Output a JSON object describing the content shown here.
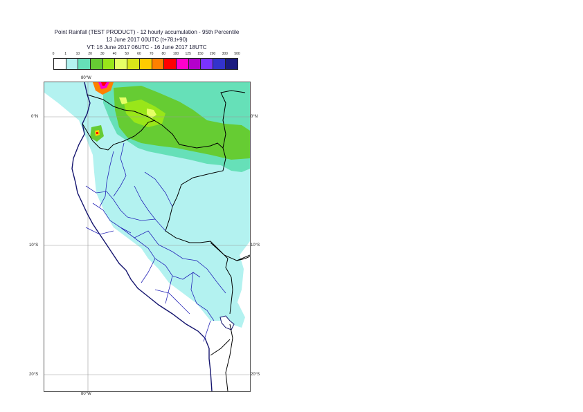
{
  "title": {
    "line1": "Point Rainfall (TEST PRODUCT) - 12 hourly accumulation - 95th Percentile",
    "line2": "13 June 2017 00UTC (t+78,t+90)",
    "line3": "VT: 16 June 2017 06UTC - 16 June 2017 18UTC"
  },
  "legend": {
    "thresholds": [
      "0",
      "1",
      "10",
      "20",
      "30",
      "40",
      "50",
      "60",
      "70",
      "80",
      "100",
      "125",
      "150",
      "200",
      "300",
      "500"
    ],
    "colors": [
      "#ffffff",
      "#b3f2f0",
      "#66e0b8",
      "#66cc33",
      "#99e619",
      "#e6ff66",
      "#d9e619",
      "#ffcc00",
      "#ff8000",
      "#ff0000",
      "#ff00cc",
      "#b300cc",
      "#7a33ff",
      "#3333cc",
      "#1a1a80"
    ]
  },
  "axes": {
    "lon_top": "80°W",
    "lon_bottom": "80°W",
    "lat_0_left": "0°N",
    "lat_0_right": "0°N",
    "lat_10_left": "10°S",
    "lat_10_right": "10°S",
    "lat_20_left": "20°S",
    "lat_20_right": "20°S"
  }
}
